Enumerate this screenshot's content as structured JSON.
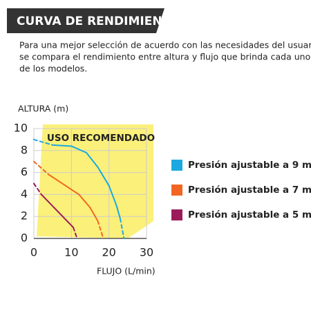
{
  "header": {
    "title": "CURVA DE RENDIMIENTO"
  },
  "description": [
    "Para una mejor selección de acuerdo con las necesidades del usuario,",
    "se compara el rendimiento entre altura y flujo que brinda cada uno",
    "de los modelos."
  ],
  "chart_data": {
    "type": "line",
    "ylabel": "ALTURA (m)",
    "xlabel": "FLUJO (L/min)",
    "annotation": "USO RECOMENDADO",
    "xlim": [
      0,
      30
    ],
    "xticks": [
      0,
      10,
      20,
      30
    ],
    "ylim": [
      0,
      10
    ],
    "yticks": [
      0,
      2,
      4,
      6,
      8,
      10
    ],
    "grid": true,
    "series": [
      {
        "name": "Presión ajustable a 9 m",
        "color": "#1ba9e0",
        "x": [
          0,
          5,
          10,
          14,
          17,
          20,
          22,
          23,
          24
        ],
        "y": [
          9,
          8.5,
          8.4,
          7.8,
          6.5,
          4.8,
          3,
          1.8,
          0
        ]
      },
      {
        "name": "Presión ajustable a 7 m",
        "color": "#f26522",
        "x": [
          0,
          4,
          8,
          12,
          15,
          17,
          18.5
        ],
        "y": [
          7,
          5.8,
          4.9,
          4,
          2.8,
          1.6,
          0
        ]
      },
      {
        "name": "Presión ajustable a 5 m",
        "color": "#9b1b5a",
        "x": [
          0,
          2,
          10.5,
          11.5
        ],
        "y": [
          5,
          4,
          1,
          0
        ]
      }
    ]
  }
}
